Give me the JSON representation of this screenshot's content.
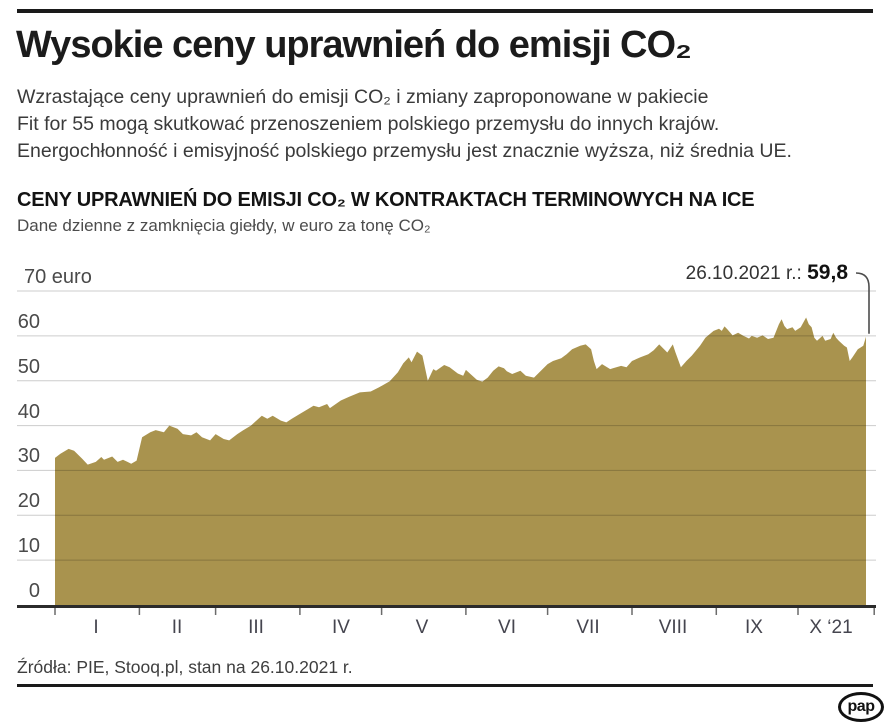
{
  "page": {
    "title": "Wysokie ceny uprawnień do emisji CO₂",
    "intro_lines": [
      "Wzrastające ceny uprawnień do emisji CO₂ i zmiany zaproponowane w pakiecie",
      "Fit for 55 mogą skutkować przenoszeniem polskiego przemysłu do innych krajów.",
      "Energochłonność i emisyjność polskiego przemysłu jest znacznie wyższa, niż średnia UE."
    ],
    "source_note": "Źródła: PIE, Stooq.pl, stan na 26.10.2021 r.",
    "logo_text": "pap"
  },
  "chart_data": {
    "type": "area",
    "title": "CENY UPRAWNIEŃ DO EMISJI CO₂ W KONTRAKTACH TERMINOWYCH NA ICE",
    "subtitle": "Dane dzienne z zamknięcia giełdy, w euro za tonę CO₂",
    "series_name": "Cena uprawnień do emisji CO₂ (euro za tonę)",
    "fill_color": "#a9934e",
    "grid_color": "rgba(0,0,0,0.2)",
    "axis_color": "#2b2b2b",
    "ylim": [
      0,
      70
    ],
    "y_ticks": [
      {
        "value": 70,
        "label": "70 euro"
      },
      {
        "value": 60,
        "label": "60"
      },
      {
        "value": 50,
        "label": "50"
      },
      {
        "value": 40,
        "label": "40"
      },
      {
        "value": 30,
        "label": "30"
      },
      {
        "value": 20,
        "label": "20"
      },
      {
        "value": 10,
        "label": "10"
      },
      {
        "value": 0,
        "label": "0"
      }
    ],
    "x_domain_days": [
      1,
      302
    ],
    "x_tick_days": [
      1,
      32,
      60,
      91,
      121,
      152,
      182,
      213,
      244,
      274,
      302
    ],
    "month_labels": [
      {
        "label": "I",
        "mid_day": 16
      },
      {
        "label": "II",
        "mid_day": 46
      },
      {
        "label": "III",
        "mid_day": 75
      },
      {
        "label": "IV",
        "mid_day": 106
      },
      {
        "label": "V",
        "mid_day": 136
      },
      {
        "label": "VI",
        "mid_day": 167
      },
      {
        "label": "VII",
        "mid_day": 197
      },
      {
        "label": "VIII",
        "mid_day": 228
      },
      {
        "label": "IX",
        "mid_day": 258
      },
      {
        "label": "X ‘21",
        "mid_day": 286
      }
    ],
    "annotation": {
      "date_label": "26.10.2021 r.: ",
      "value_label": "59,8",
      "day": 299,
      "value": 59.8
    },
    "points": [
      [
        1,
        32.8
      ],
      [
        3,
        33.7
      ],
      [
        6,
        34.8
      ],
      [
        8,
        34.4
      ],
      [
        11,
        32.6
      ],
      [
        13,
        31.3
      ],
      [
        16,
        31.9
      ],
      [
        18,
        33.0
      ],
      [
        19,
        32.4
      ],
      [
        22,
        33.1
      ],
      [
        24,
        31.9
      ],
      [
        26,
        32.4
      ],
      [
        29,
        31.5
      ],
      [
        31,
        32.2
      ],
      [
        33,
        37.4
      ],
      [
        36,
        38.5
      ],
      [
        38,
        39.0
      ],
      [
        41,
        38.5
      ],
      [
        43,
        40.0
      ],
      [
        46,
        39.3
      ],
      [
        48,
        38.1
      ],
      [
        51,
        37.8
      ],
      [
        53,
        38.5
      ],
      [
        55,
        37.4
      ],
      [
        58,
        36.7
      ],
      [
        60,
        38.1
      ],
      [
        63,
        37.0
      ],
      [
        65,
        36.7
      ],
      [
        68,
        38.1
      ],
      [
        70,
        38.9
      ],
      [
        73,
        40.0
      ],
      [
        75,
        41.1
      ],
      [
        77,
        42.2
      ],
      [
        79,
        41.5
      ],
      [
        81,
        42.2
      ],
      [
        84,
        41.1
      ],
      [
        86,
        40.7
      ],
      [
        88,
        41.5
      ],
      [
        91,
        42.6
      ],
      [
        94,
        43.7
      ],
      [
        96,
        44.4
      ],
      [
        98,
        44.1
      ],
      [
        101,
        44.8
      ],
      [
        102,
        43.9
      ],
      [
        106,
        45.6
      ],
      [
        109,
        46.4
      ],
      [
        113,
        47.4
      ],
      [
        117,
        47.6
      ],
      [
        120,
        48.5
      ],
      [
        124,
        49.9
      ],
      [
        127,
        51.9
      ],
      [
        129,
        53.9
      ],
      [
        131,
        55.2
      ],
      [
        132,
        54.1
      ],
      [
        134,
        56.5
      ],
      [
        136,
        55.6
      ],
      [
        138,
        50.0
      ],
      [
        140,
        52.6
      ],
      [
        141,
        52.2
      ],
      [
        144,
        53.5
      ],
      [
        146,
        53.0
      ],
      [
        149,
        51.6
      ],
      [
        151,
        51.1
      ],
      [
        152,
        52.4
      ],
      [
        154,
        51.3
      ],
      [
        156,
        50.2
      ],
      [
        158,
        49.8
      ],
      [
        160,
        50.7
      ],
      [
        162,
        52.2
      ],
      [
        164,
        53.2
      ],
      [
        166,
        52.8
      ],
      [
        167,
        52.1
      ],
      [
        169,
        51.5
      ],
      [
        172,
        52.2
      ],
      [
        174,
        51.1
      ],
      [
        177,
        50.7
      ],
      [
        179,
        51.9
      ],
      [
        182,
        53.7
      ],
      [
        184,
        54.4
      ],
      [
        187,
        55.0
      ],
      [
        189,
        55.9
      ],
      [
        191,
        57.0
      ],
      [
        194,
        57.8
      ],
      [
        196,
        58.1
      ],
      [
        198,
        57.0
      ],
      [
        199,
        54.4
      ],
      [
        200,
        52.6
      ],
      [
        202,
        53.7
      ],
      [
        205,
        52.6
      ],
      [
        206,
        52.8
      ],
      [
        209,
        53.3
      ],
      [
        211,
        53.0
      ],
      [
        213,
        54.4
      ],
      [
        216,
        55.2
      ],
      [
        219,
        55.9
      ],
      [
        221,
        56.8
      ],
      [
        223,
        58.1
      ],
      [
        226,
        56.3
      ],
      [
        228,
        58.1
      ],
      [
        229,
        56.3
      ],
      [
        231,
        53.0
      ],
      [
        233,
        54.4
      ],
      [
        235,
        55.6
      ],
      [
        238,
        57.8
      ],
      [
        240,
        59.6
      ],
      [
        241,
        60.1
      ],
      [
        243,
        61.1
      ],
      [
        245,
        61.6
      ],
      [
        246,
        61.1
      ],
      [
        247,
        62.1
      ],
      [
        248,
        61.5
      ],
      [
        250,
        60.1
      ],
      [
        252,
        60.7
      ],
      [
        254,
        60.0
      ],
      [
        256,
        59.4
      ],
      [
        257,
        60.0
      ],
      [
        259,
        59.6
      ],
      [
        261,
        60.1
      ],
      [
        263,
        59.3
      ],
      [
        265,
        59.6
      ],
      [
        267,
        62.6
      ],
      [
        268,
        63.7
      ],
      [
        269,
        62.2
      ],
      [
        270,
        61.5
      ],
      [
        272,
        61.9
      ],
      [
        273,
        61.1
      ],
      [
        275,
        61.9
      ],
      [
        277,
        64.1
      ],
      [
        278,
        62.6
      ],
      [
        279,
        61.9
      ],
      [
        280,
        59.6
      ],
      [
        281,
        58.9
      ],
      [
        283,
        60.0
      ],
      [
        284,
        58.9
      ],
      [
        286,
        59.3
      ],
      [
        287,
        60.7
      ],
      [
        288,
        59.6
      ],
      [
        289,
        58.9
      ],
      [
        291,
        57.8
      ],
      [
        292,
        57.4
      ],
      [
        293,
        54.4
      ],
      [
        294,
        55.2
      ],
      [
        296,
        57.0
      ],
      [
        297,
        57.4
      ],
      [
        298,
        57.8
      ],
      [
        299,
        59.8
      ]
    ]
  }
}
